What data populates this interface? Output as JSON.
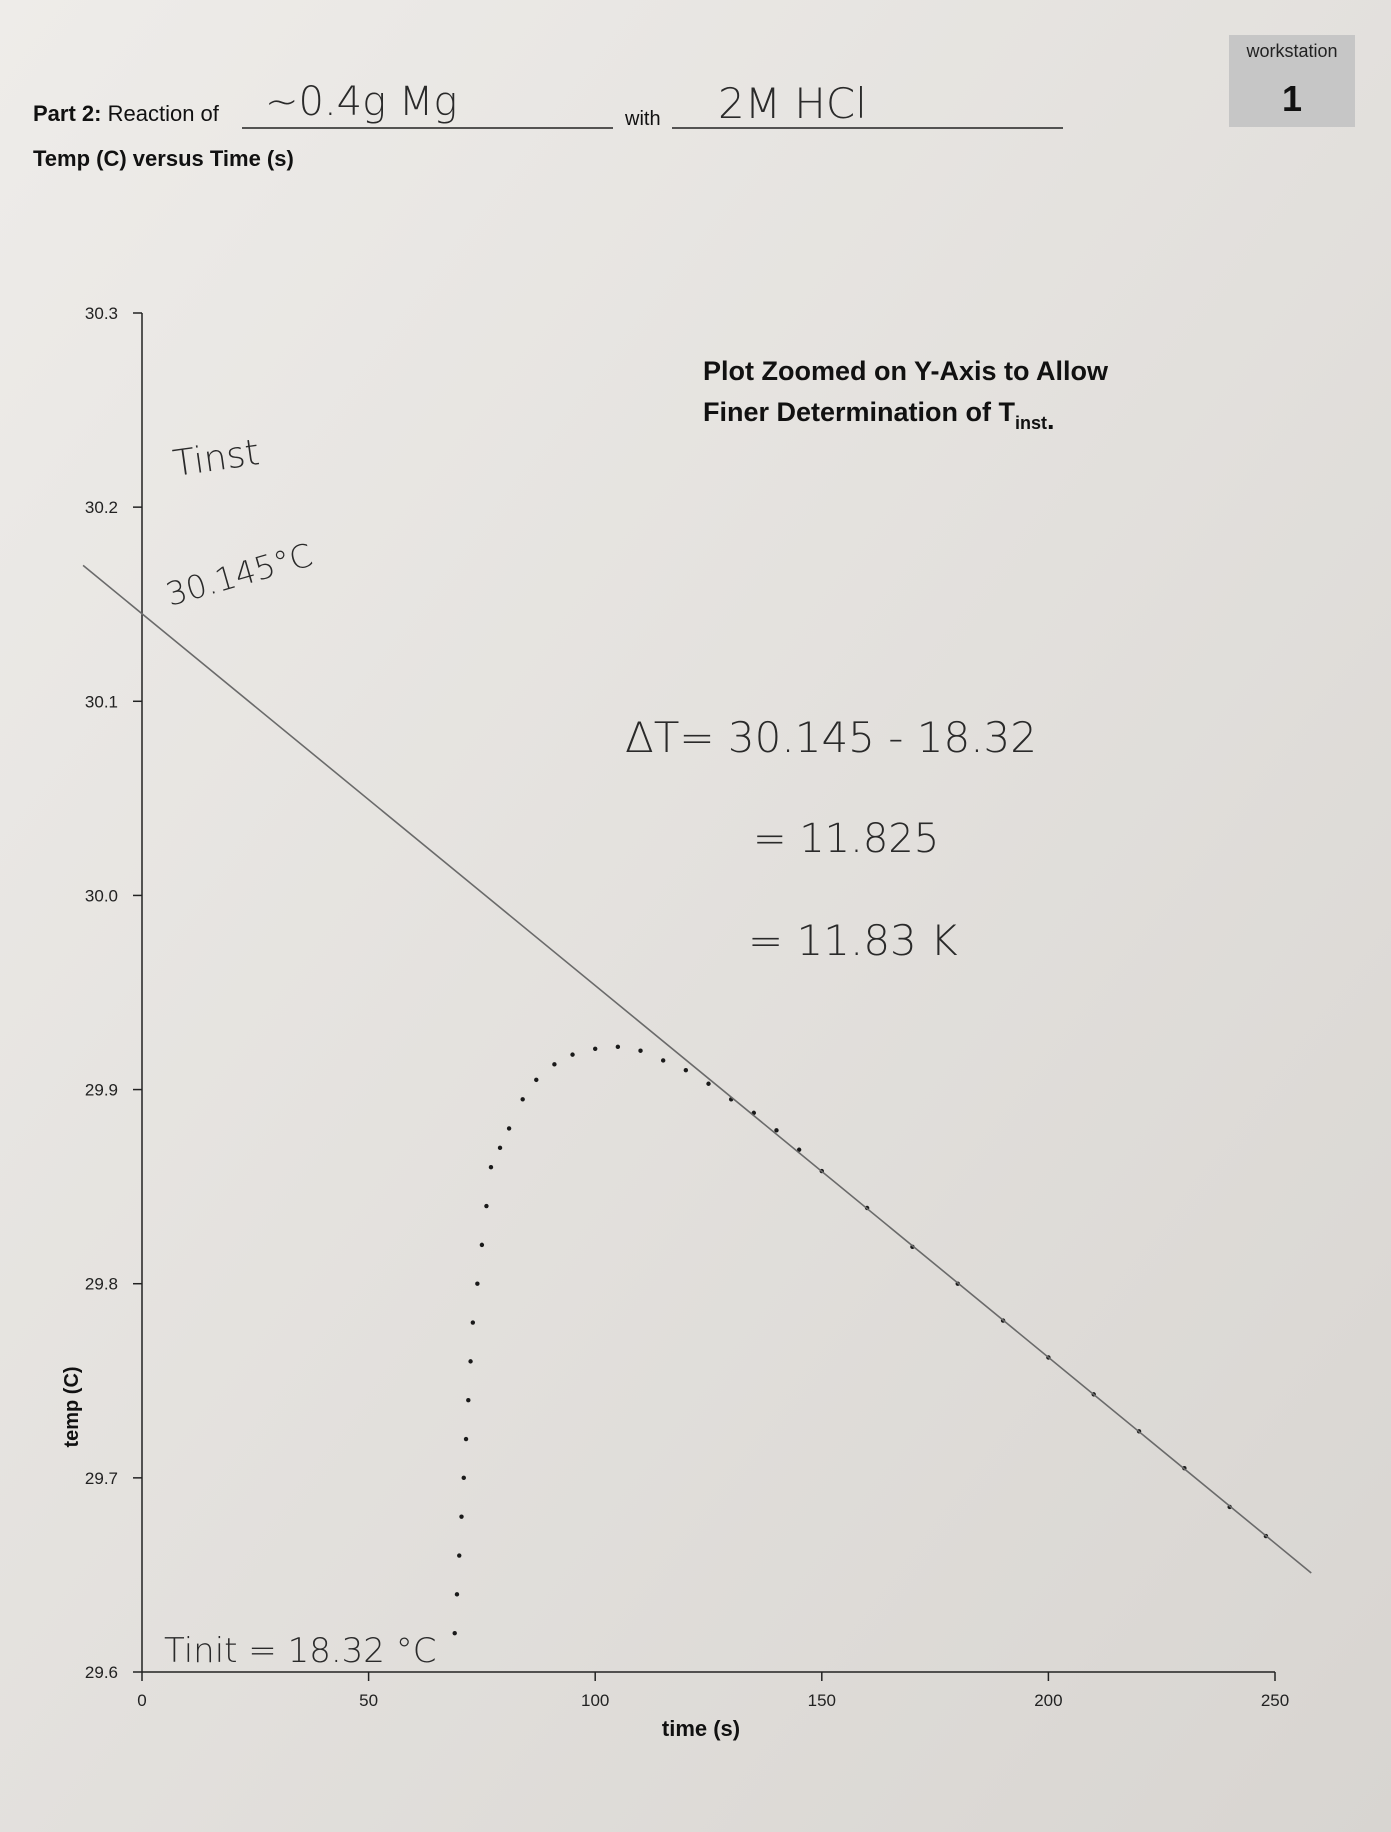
{
  "header": {
    "part": "Part 2:",
    "reaction_of": "Reaction of",
    "reactant": "~0.4g Mg",
    "with": "with",
    "reagent": "2M HCl",
    "workstation_label": "workstation",
    "workstation_number": "1"
  },
  "chart_data": {
    "type": "scatter",
    "title": "Temp (C) versus Time (s)",
    "x_label": "time (s)",
    "y_label": "temp (C)",
    "xlim": [
      0,
      250
    ],
    "ylim": [
      29.6,
      30.3
    ],
    "xticks": [
      0,
      50,
      100,
      150,
      200,
      250
    ],
    "yticks": [
      30.3,
      30.2,
      30.1,
      {
        "value": 30.0,
        "label": "30.0"
      },
      29.9,
      29.8,
      29.7,
      29.6
    ],
    "series": [
      {
        "mode": "markers",
        "color": "#1a1a1a",
        "x": [
          69,
          69.5,
          70,
          70.5,
          71,
          71.5,
          72,
          72.5,
          73,
          74,
          75,
          76,
          77,
          79,
          81,
          84,
          87,
          91,
          95,
          100,
          105,
          110,
          115,
          120,
          125,
          130,
          135,
          140,
          145,
          150,
          160,
          170,
          180,
          190,
          200,
          210,
          220,
          230,
          240,
          248
        ],
        "values": [
          29.62,
          29.64,
          29.66,
          29.68,
          29.7,
          29.72,
          29.74,
          29.76,
          29.78,
          29.8,
          29.82,
          29.84,
          29.86,
          29.87,
          29.88,
          29.895,
          29.905,
          29.913,
          29.918,
          29.921,
          29.922,
          29.92,
          29.915,
          29.91,
          29.903,
          29.895,
          29.888,
          29.879,
          29.869,
          29.858,
          29.839,
          29.819,
          29.8,
          29.781,
          29.762,
          29.743,
          29.724,
          29.705,
          29.685,
          29.67
        ]
      },
      {
        "mode": "line",
        "color": "#6a6a6a",
        "x": [
          -13,
          258
        ],
        "values": [
          30.17,
          29.651
        ]
      }
    ],
    "annotations": {
      "note_line1": "Plot Zoomed on Y-Axis to Allow",
      "note_line2": "Finer Determination of T",
      "note_sub": "inst",
      "note_end": ".",
      "tinst": "Tinst",
      "tinst_value": "30.145°C",
      "delta1": "ΔT= 30.145 - 18.32",
      "delta2": "= 11.825",
      "delta3": "= 11.83 K",
      "tinit": "Tinit = 18.32 °C"
    }
  }
}
